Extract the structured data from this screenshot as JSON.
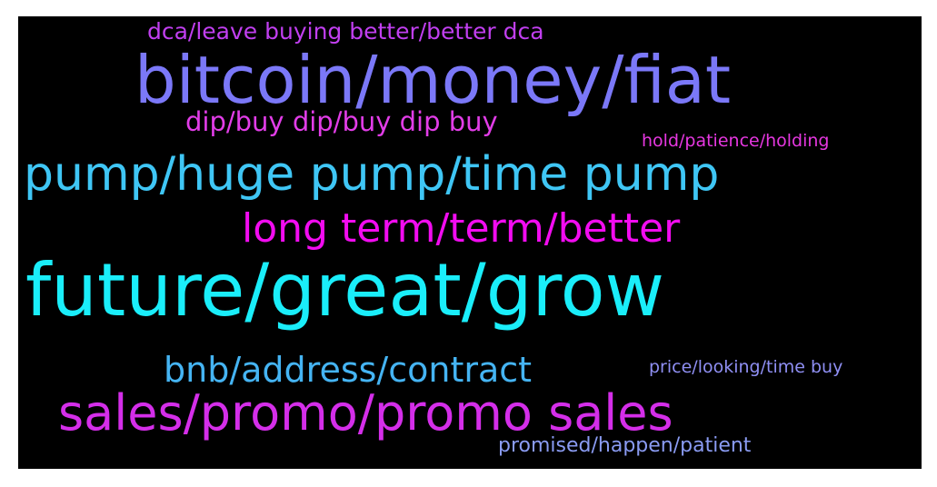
{
  "wordcloud": {
    "background": "#000000",
    "words": [
      {
        "text": "dca/leave buying better/better dca",
        "color": "#c13ff0"
      },
      {
        "text": "bitcoin/money/fiat",
        "color": "#7b78f8"
      },
      {
        "text": "dip/buy dip/buy dip buy",
        "color": "#e23de8"
      },
      {
        "text": "hold/patience/holding",
        "color": "#e637e0"
      },
      {
        "text": "pump/huge pump/time pump",
        "color": "#3fc6f5"
      },
      {
        "text": "long term/term/better",
        "color": "#f20cf0"
      },
      {
        "text": "future/great/grow",
        "color": "#1aeefa"
      },
      {
        "text": "bnb/address/contract",
        "color": "#45b4f3"
      },
      {
        "text": "price/looking/time buy",
        "color": "#8f8ff3"
      },
      {
        "text": "sales/promo/promo sales",
        "color": "#d42ee9"
      },
      {
        "text": "promised/happen/patient",
        "color": "#8a9bf2"
      }
    ]
  }
}
